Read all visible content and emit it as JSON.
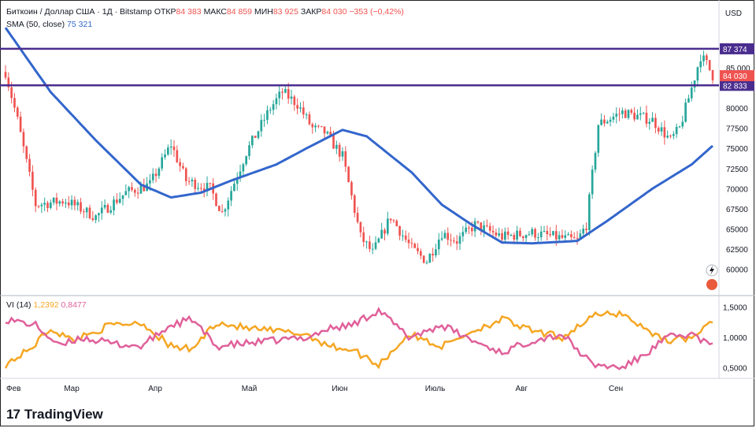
{
  "header": {
    "symbol": "Биткоин / Доллар США · 1Д · Bitstamp",
    "ohlc": [
      {
        "key": "ОТКР",
        "value": "84 383"
      },
      {
        "key": "МАКС",
        "value": "84 859"
      },
      {
        "key": "МИН",
        "value": "83 925"
      },
      {
        "key": "ЗАКР",
        "value": "84 030"
      }
    ],
    "change": "−353 (−0,42%)",
    "currency": "USD"
  },
  "sma": {
    "label": "SMA (50, close)",
    "value": "75 321",
    "color": "#3366cc"
  },
  "vi": {
    "label": "VI (14)",
    "plus_value": "1,2392",
    "minus_value": "0,8477",
    "plus_color": "#f5a623",
    "minus_color": "#e0609a"
  },
  "brand": {
    "name": "TradingView",
    "logo": "17"
  },
  "colors": {
    "up": "#26a69a",
    "down": "#ef5350",
    "level": "#4a2d8f",
    "sma": "#3366cc"
  },
  "chart_data": {
    "type": "candlestick",
    "price_axis": {
      "ticks": [
        60000,
        62500,
        65000,
        67500,
        70000,
        72500,
        75000,
        77500,
        80000,
        85000
      ],
      "tick_labels": [
        "60000",
        "62500",
        "65000",
        "67500",
        "70000",
        "72500",
        "75000",
        "77500",
        "80000",
        "85 000"
      ],
      "range": [
        57000,
        90500
      ]
    },
    "time_axis": {
      "labels": [
        "Фев",
        "Мар",
        "Апр",
        "Май",
        "Июн",
        "Июль",
        "Авг",
        "Сен"
      ]
    },
    "levels": [
      {
        "value": 87374,
        "label": "87 374"
      },
      {
        "value": 82833,
        "label": "82 833"
      }
    ],
    "last_price": {
      "value": 84030,
      "label": "84 030"
    },
    "price_keypoints": [
      {
        "t": 0,
        "price": 84500
      },
      {
        "t": 4,
        "price": 78500
      },
      {
        "t": 10,
        "price": 68000
      },
      {
        "t": 20,
        "price": 68500
      },
      {
        "t": 30,
        "price": 66500
      },
      {
        "t": 40,
        "price": 69500
      },
      {
        "t": 48,
        "price": 70500
      },
      {
        "t": 55,
        "price": 75500
      },
      {
        "t": 60,
        "price": 71000
      },
      {
        "t": 68,
        "price": 70000
      },
      {
        "t": 72,
        "price": 67000
      },
      {
        "t": 80,
        "price": 74500
      },
      {
        "t": 88,
        "price": 80000
      },
      {
        "t": 92,
        "price": 82000
      },
      {
        "t": 97,
        "price": 80500
      },
      {
        "t": 102,
        "price": 77500
      },
      {
        "t": 106,
        "price": 77000
      },
      {
        "t": 112,
        "price": 74000
      },
      {
        "t": 118,
        "price": 64000
      },
      {
        "t": 122,
        "price": 62000
      },
      {
        "t": 128,
        "price": 66500
      },
      {
        "t": 135,
        "price": 62500
      },
      {
        "t": 140,
        "price": 61000
      },
      {
        "t": 145,
        "price": 64500
      },
      {
        "t": 150,
        "price": 63500
      },
      {
        "t": 156,
        "price": 65500
      },
      {
        "t": 165,
        "price": 64000
      },
      {
        "t": 175,
        "price": 64500
      },
      {
        "t": 190,
        "price": 63500
      },
      {
        "t": 193,
        "price": 65500
      },
      {
        "t": 197,
        "price": 78000
      },
      {
        "t": 205,
        "price": 79500
      },
      {
        "t": 210,
        "price": 79000
      },
      {
        "t": 215,
        "price": 78500
      },
      {
        "t": 221,
        "price": 76000
      },
      {
        "t": 224,
        "price": 77500
      },
      {
        "t": 228,
        "price": 82500
      },
      {
        "t": 231,
        "price": 86500
      },
      {
        "t": 233,
        "price": 85500
      },
      {
        "t": 235,
        "price": 84030
      }
    ],
    "sma_keypoints": [
      {
        "t": 0,
        "price": 90000
      },
      {
        "t": 15,
        "price": 82000
      },
      {
        "t": 30,
        "price": 76000
      },
      {
        "t": 45,
        "price": 70500
      },
      {
        "t": 55,
        "price": 68900
      },
      {
        "t": 65,
        "price": 69500
      },
      {
        "t": 75,
        "price": 71000
      },
      {
        "t": 90,
        "price": 73000
      },
      {
        "t": 100,
        "price": 75000
      },
      {
        "t": 112,
        "price": 77300
      },
      {
        "t": 120,
        "price": 76500
      },
      {
        "t": 135,
        "price": 72000
      },
      {
        "t": 145,
        "price": 68000
      },
      {
        "t": 155,
        "price": 65500
      },
      {
        "t": 165,
        "price": 63300
      },
      {
        "t": 175,
        "price": 63200
      },
      {
        "t": 190,
        "price": 63500
      },
      {
        "t": 200,
        "price": 66000
      },
      {
        "t": 215,
        "price": 70000
      },
      {
        "t": 228,
        "price": 73000
      },
      {
        "t": 235,
        "price": 75321
      }
    ],
    "vi_axis": {
      "ticks": [
        0.5,
        1.0,
        1.5
      ],
      "tick_labels": [
        "0,5000",
        "1,0000",
        "1,5000"
      ],
      "range": [
        0.35,
        1.65
      ]
    },
    "vi_plus_keypoints": [
      {
        "t": 0,
        "v": 0.55
      },
      {
        "t": 8,
        "v": 0.8
      },
      {
        "t": 15,
        "v": 1.15
      },
      {
        "t": 22,
        "v": 0.95
      },
      {
        "t": 35,
        "v": 1.2
      },
      {
        "t": 45,
        "v": 1.25
      },
      {
        "t": 55,
        "v": 0.85
      },
      {
        "t": 62,
        "v": 0.8
      },
      {
        "t": 70,
        "v": 1.25
      },
      {
        "t": 80,
        "v": 1.15
      },
      {
        "t": 90,
        "v": 1.1
      },
      {
        "t": 100,
        "v": 1.05
      },
      {
        "t": 108,
        "v": 0.85
      },
      {
        "t": 115,
        "v": 0.8
      },
      {
        "t": 124,
        "v": 0.55
      },
      {
        "t": 134,
        "v": 1.05
      },
      {
        "t": 145,
        "v": 0.85
      },
      {
        "t": 155,
        "v": 1.1
      },
      {
        "t": 165,
        "v": 1.3
      },
      {
        "t": 175,
        "v": 1.1
      },
      {
        "t": 185,
        "v": 1.0
      },
      {
        "t": 195,
        "v": 1.35
      },
      {
        "t": 205,
        "v": 1.4
      },
      {
        "t": 212,
        "v": 1.15
      },
      {
        "t": 220,
        "v": 0.95
      },
      {
        "t": 228,
        "v": 1.0
      },
      {
        "t": 235,
        "v": 1.2392
      }
    ],
    "vi_minus_keypoints": [
      {
        "t": 0,
        "v": 1.3
      },
      {
        "t": 10,
        "v": 1.2
      },
      {
        "t": 18,
        "v": 0.85
      },
      {
        "t": 25,
        "v": 1.0
      },
      {
        "t": 35,
        "v": 0.9
      },
      {
        "t": 45,
        "v": 0.85
      },
      {
        "t": 55,
        "v": 1.2
      },
      {
        "t": 62,
        "v": 1.3
      },
      {
        "t": 70,
        "v": 0.85
      },
      {
        "t": 80,
        "v": 0.9
      },
      {
        "t": 90,
        "v": 0.95
      },
      {
        "t": 100,
        "v": 1.0
      },
      {
        "t": 108,
        "v": 1.15
      },
      {
        "t": 115,
        "v": 1.2
      },
      {
        "t": 124,
        "v": 1.45
      },
      {
        "t": 134,
        "v": 1.0
      },
      {
        "t": 145,
        "v": 1.2
      },
      {
        "t": 155,
        "v": 0.95
      },
      {
        "t": 165,
        "v": 0.75
      },
      {
        "t": 175,
        "v": 0.95
      },
      {
        "t": 185,
        "v": 1.05
      },
      {
        "t": 195,
        "v": 0.55
      },
      {
        "t": 205,
        "v": 0.5
      },
      {
        "t": 212,
        "v": 0.7
      },
      {
        "t": 220,
        "v": 1.0
      },
      {
        "t": 228,
        "v": 1.05
      },
      {
        "t": 235,
        "v": 0.8477
      }
    ]
  }
}
